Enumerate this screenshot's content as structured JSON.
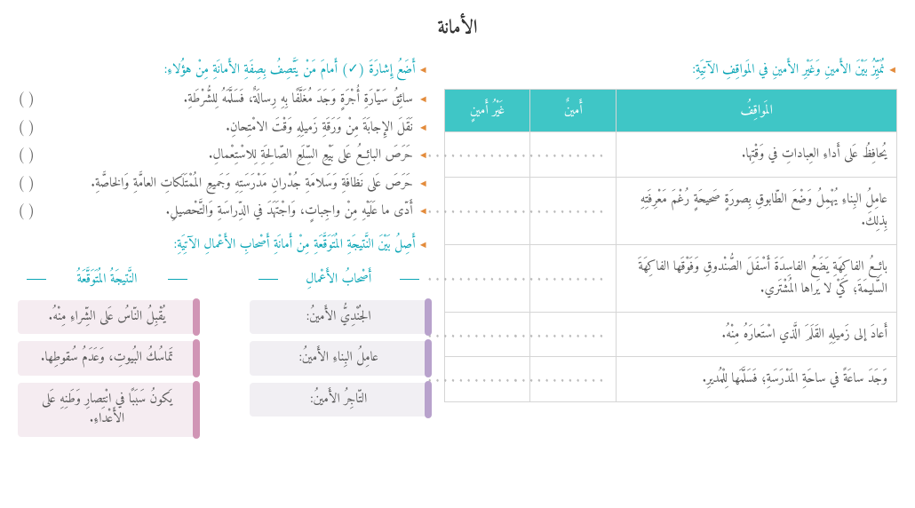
{
  "title": "الأمانة",
  "section1": {
    "prompt": "نُمَيِّزُ بَيْنَ الأَمينِ وَغَيْرِ الأَمينِ في المَواقِفِ الآتِيَةِ:",
    "headers": {
      "situation": "المَواقِفُ",
      "honest": "أَمينٌ",
      "dishonest": "غَيْرُ أَمينٍ"
    },
    "rows": [
      "يُحافِظُ عَلى أَداءِ العِباداتِ في وَقْتِها.",
      "عامِلُ البِناءِ يُهْمِلُ وَضْعَ الطّابوقِ بِصورَةٍ صَحيحَةٍ رُغْمَ مَعْرِفَتِهِ بِذلِكَ.",
      "بائِعُ الفاكِهَةِ يَضَعُ الفاسِدَةَ أَسْفَلَ الصُّنْدوقِ وَفَوْقَها الفاكِهَةَ السَّليمَةَ؛ كَيْ لا يَراها المُشْتَري.",
      "أَعادَ إلى زَميلِهِ القَلَمَ الَّذي اسْتَعارَهُ مِنْهُ.",
      "وَجَدَ ساعَةً في ساحَةِ المَدْرَسَةِ؛ فَسَلَّمَها لِلْمُديرِ."
    ],
    "blank": "............"
  },
  "section2": {
    "prompt": "أَضَعُ إِشارَةَ (✓) أَمامَ مَنْ يَتَّصِفُ بِصِفَةِ الأَمانَةِ مِنْ هؤُلاءِ:",
    "items": [
      "سائِقُ سَيّارَةِ أُجْرَةٍ وَجَدَ مُغَلَّفًا بِهِ رِسالَةٌ، فَسَلَّمَهُ لِلشُّرْطَةِ.",
      "نَقَلَ الإِجابَةَ مِنْ وَرَقَةِ زَميلِهِ وَقْتَ الامْتِحانِ.",
      "حَرَصَ البائِعُ عَلى بَيْعِ السِّلَعِ الصّالِحَةِ لِلاسْتِعْمالِ.",
      "حَرَصَ عَلى نَظافَةِ وَسَلامَةِ جُدْرانِ مَدْرَسَتِهِ وَجَميعِ المُمْتَلَكاتِ العامَّةِ وَالخاصَّةِ.",
      "أَدّى ما عَلَيْهِ مِنْ واجِباتٍ، وَاجْتَهَدَ في الدِّراسَةِ وَالتَّحْصيلِ."
    ],
    "paren": "(      )"
  },
  "section3": {
    "prompt": "أَصِلُ بَيْنَ النَّتيجَةِ المُتَوَقَّعَةِ مِنْ أَمانَةِ أَصْحابِ الأَعْمالِ الآتِيَةِ:",
    "owners_header": "أَصْحابُ الأَعْمالِ",
    "results_header": "النَّتيجَةُ المُتَوَقَّعَةُ",
    "owners": [
      "الجُنْدِيُّ الأَمينُ:",
      "عامِلُ البِناءِ الأَمينُ:",
      "التّاجِرُ الأَمينُ:"
    ],
    "results": [
      "يُقْبِلُ النّاسُ عَلى الشِّراءِ مِنْهُ.",
      "تَماسُكُ البُيوتِ، وَعَدَمُ سُقوطِها.",
      "يَكونُ سَبَبًا في انْتِصارِ وَطَنِهِ عَلى الأَعْداءِ."
    ]
  }
}
